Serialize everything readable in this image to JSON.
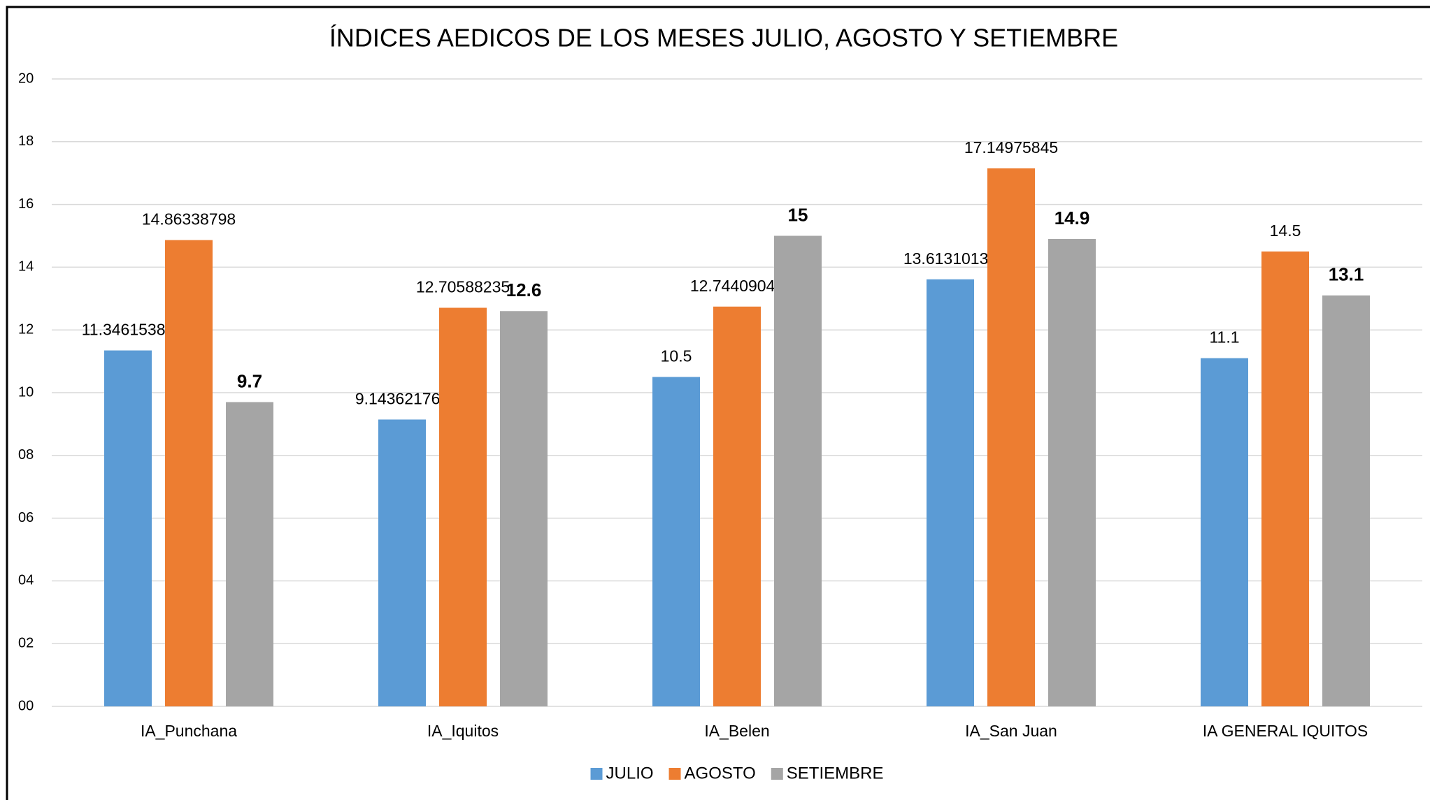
{
  "chart_data": {
    "type": "bar",
    "title": "ÍNDICES AEDICOS DE LOS MESES JULIO, AGOSTO Y SETIEMBRE",
    "categories": [
      "IA_Punchana",
      "IA_Iquitos",
      "IA_Belen",
      "IA_San Juan",
      "IA GENERAL IQUITOS"
    ],
    "series": [
      {
        "name": "JULIO",
        "color": "#5b9bd5",
        "values": [
          11.34615385,
          9.143621766,
          10.5,
          13.61310133,
          11.1
        ]
      },
      {
        "name": "AGOSTO",
        "color": "#ed7d31",
        "values": [
          14.86338798,
          12.70588235,
          12.74409044,
          17.14975845,
          14.5
        ]
      },
      {
        "name": "SETIEMBRE",
        "color": "#a5a5a5",
        "values": [
          9.7,
          12.6,
          15,
          14.9,
          13.1
        ]
      }
    ],
    "ylim": [
      0,
      20
    ],
    "yticks": [
      {
        "value": 0,
        "label": "00"
      },
      {
        "value": 2,
        "label": "02"
      },
      {
        "value": 4,
        "label": "04"
      },
      {
        "value": 6,
        "label": "06"
      },
      {
        "value": 8,
        "label": "08"
      },
      10,
      12,
      14,
      16,
      18,
      20
    ],
    "grid": true,
    "legend": "bottom"
  }
}
